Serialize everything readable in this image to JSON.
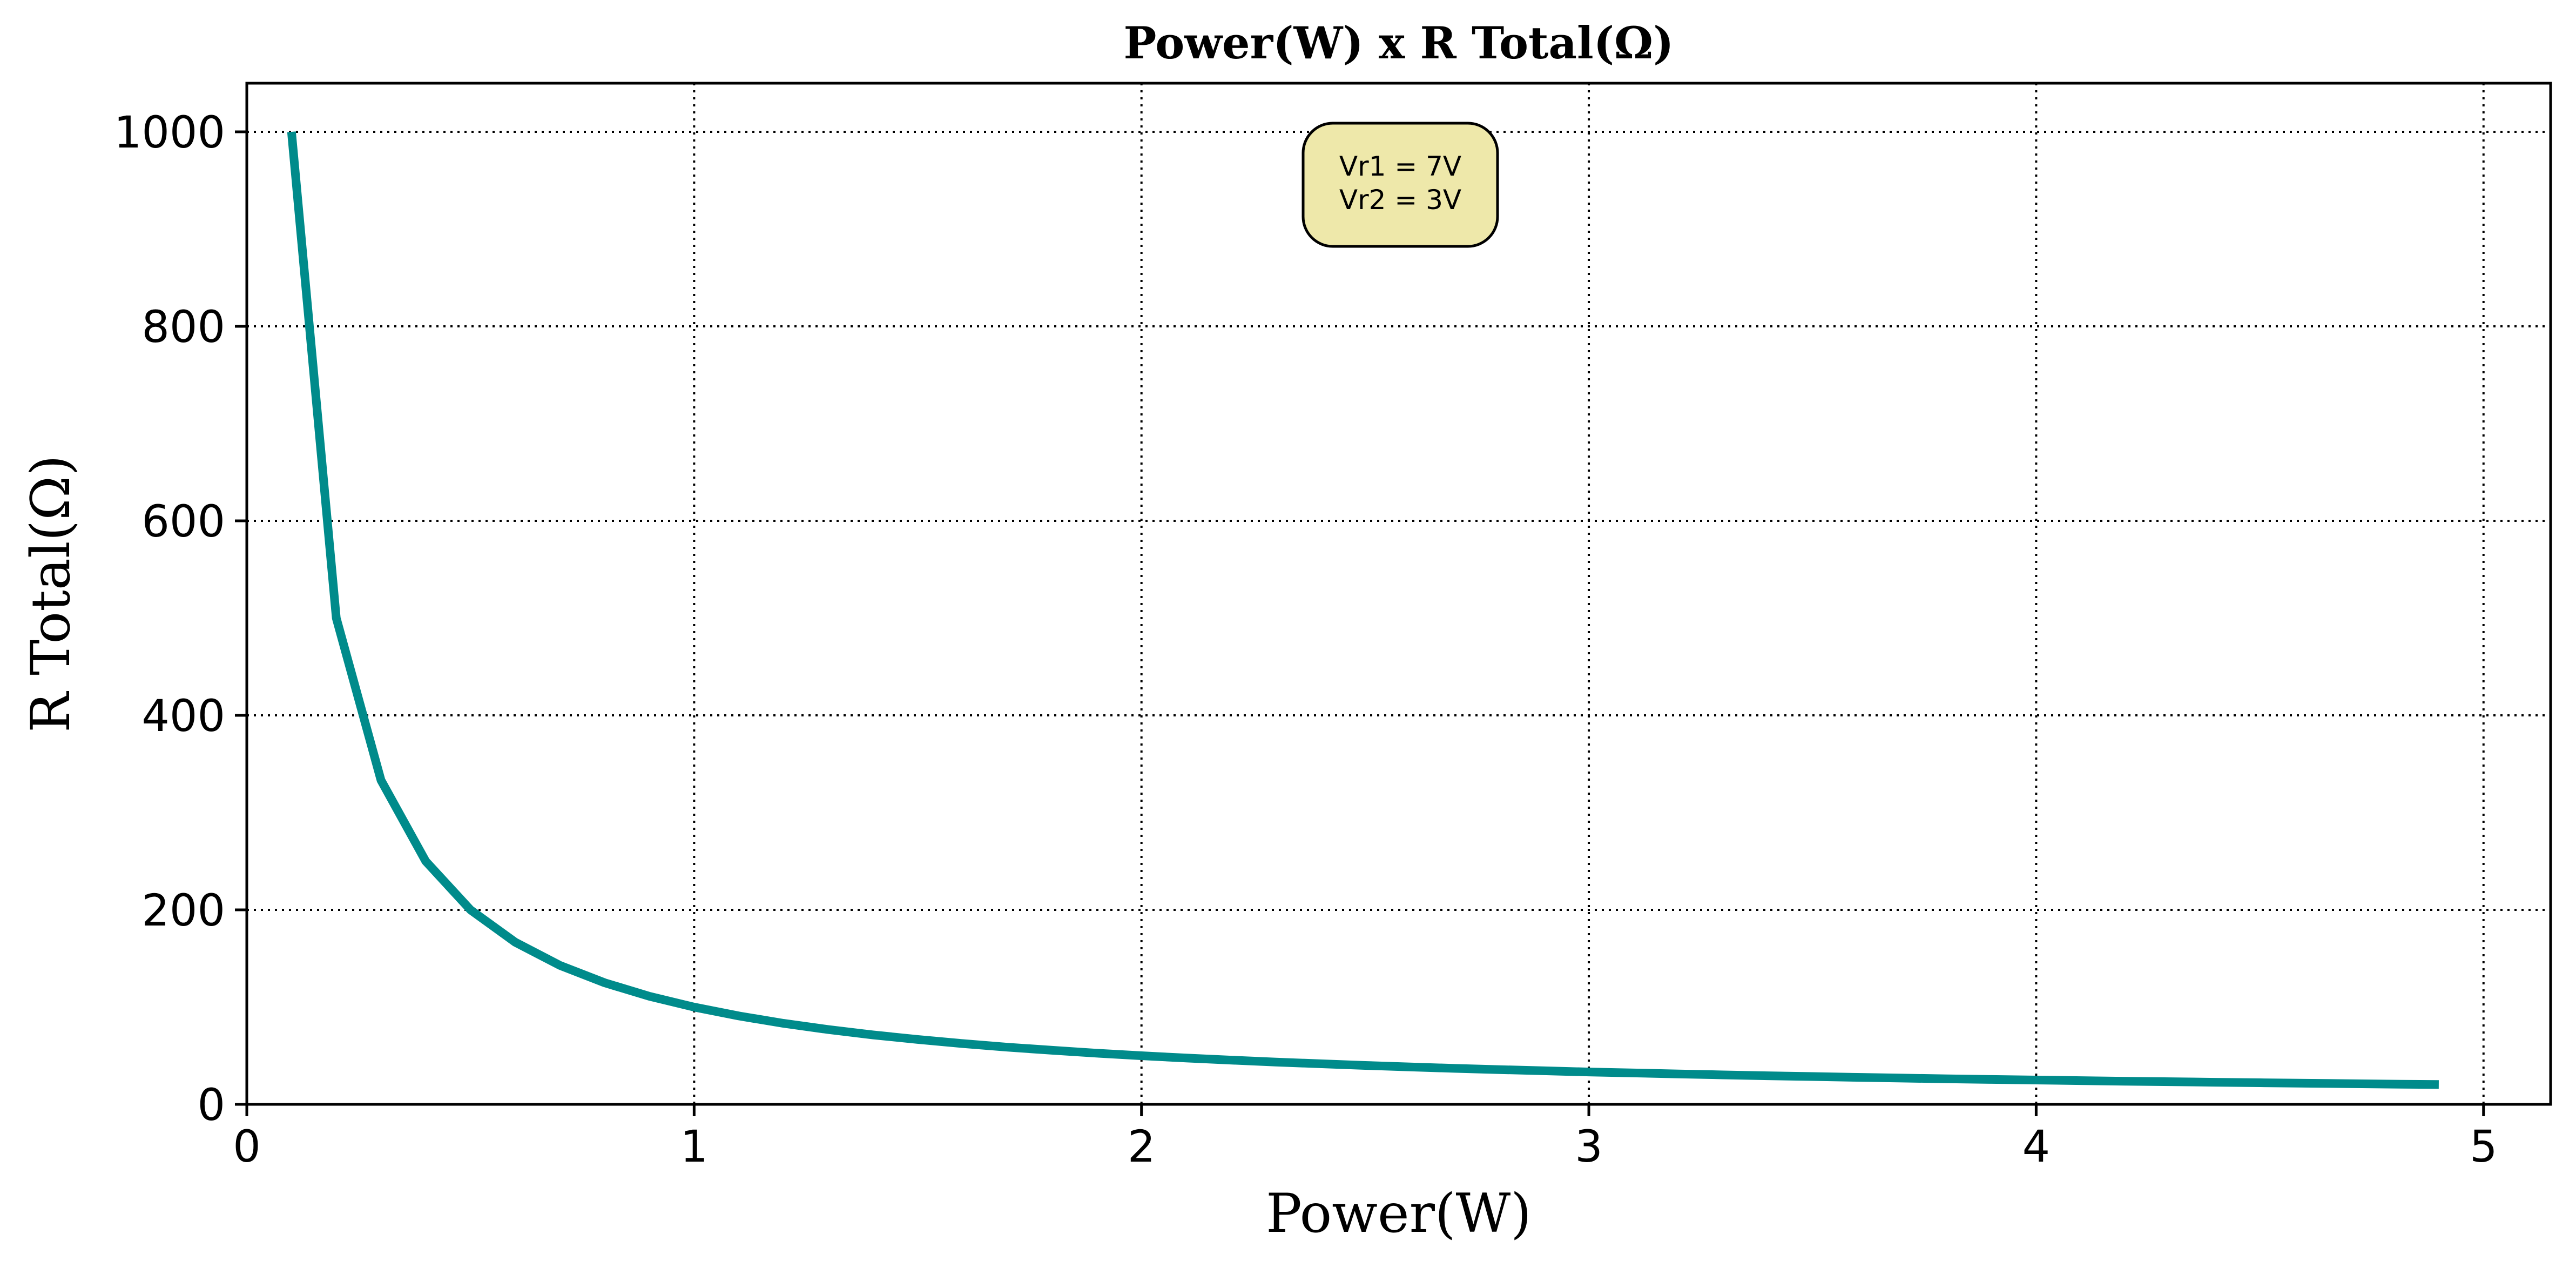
{
  "chart_data": {
    "type": "line",
    "title": "Power(W) x R Total(Ω)",
    "xlabel": "Power(W)",
    "ylabel": "R Total(Ω)",
    "xlim": [
      0,
      5.15
    ],
    "ylim": [
      0,
      1050
    ],
    "x_ticks": [
      0,
      1,
      2,
      3,
      4,
      5
    ],
    "y_ticks": [
      0,
      200,
      400,
      600,
      800,
      1000
    ],
    "grid": true,
    "annotation": [
      "Vr1 = 7V",
      "Vr2 = 3V"
    ],
    "series": [
      {
        "color": "#008B8B",
        "x": [
          0.1,
          0.2,
          0.3,
          0.4,
          0.5,
          0.6,
          0.7,
          0.8,
          0.9,
          1.0,
          1.1,
          1.2,
          1.3,
          1.4,
          1.5,
          1.6,
          1.7,
          1.8,
          1.9,
          2.0,
          2.1,
          2.2,
          2.3,
          2.4,
          2.5,
          2.6,
          2.7,
          2.8,
          2.9,
          3.0,
          3.1,
          3.2,
          3.3,
          3.4,
          3.5,
          3.6,
          3.7,
          3.8,
          3.9,
          4.0,
          4.1,
          4.2,
          4.3,
          4.4,
          4.5,
          4.6,
          4.7,
          4.8,
          4.9
        ],
        "values": [
          1000,
          500,
          333.3,
          250,
          200,
          166.7,
          142.9,
          125,
          111.1,
          100,
          90.9,
          83.3,
          76.9,
          71.4,
          66.7,
          62.5,
          58.8,
          55.6,
          52.6,
          50,
          47.6,
          45.5,
          43.5,
          41.7,
          40,
          38.5,
          37,
          35.7,
          34.5,
          33.3,
          32.3,
          31.3,
          30.3,
          29.4,
          28.6,
          27.8,
          27,
          26.3,
          25.6,
          25,
          24.4,
          23.8,
          23.3,
          22.7,
          22.2,
          21.7,
          21.3,
          20.8,
          20.4
        ]
      }
    ]
  },
  "colors": {
    "line": "#008B8B",
    "annotation_fill": "#EEE8AA",
    "grid": "#000000"
  }
}
